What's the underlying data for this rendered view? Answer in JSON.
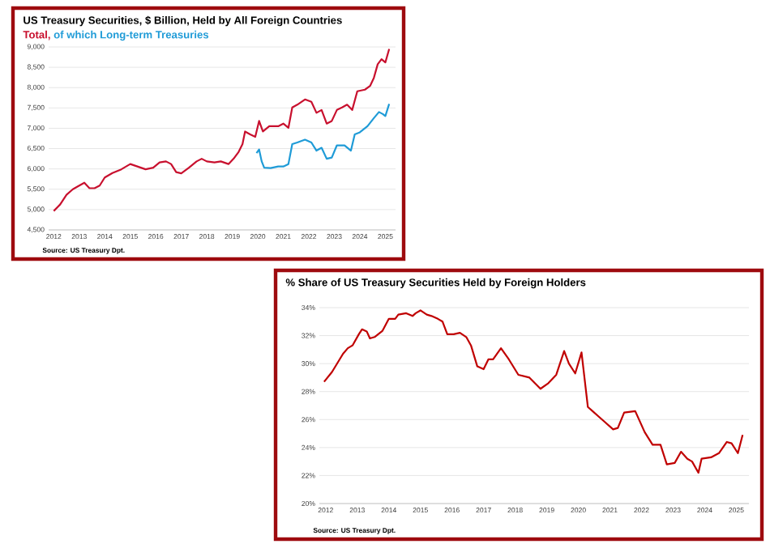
{
  "chart_data": [
    {
      "type": "line",
      "title": "US Treasury Securities, $ Billion, Held by All Foreign Countries",
      "series": [
        {
          "name": "Total,",
          "color": "#c8102e",
          "x": [
            2012.0,
            2012.25,
            2012.5,
            2012.75,
            2013.0,
            2013.2,
            2013.4,
            2013.6,
            2013.8,
            2014.0,
            2014.3,
            2014.65,
            2015.0,
            2015.3,
            2015.6,
            2015.9,
            2016.15,
            2016.4,
            2016.6,
            2016.8,
            2017.0,
            2017.3,
            2017.6,
            2017.8,
            2018.0,
            2018.3,
            2018.55,
            2018.85,
            2019.05,
            2019.25,
            2019.4,
            2019.5,
            2019.7,
            2019.9,
            2020.05,
            2020.2,
            2020.45,
            2020.8,
            2021.0,
            2021.2,
            2021.35,
            2021.55,
            2021.85,
            2022.1,
            2022.3,
            2022.5,
            2022.7,
            2022.9,
            2023.1,
            2023.3,
            2023.5,
            2023.7,
            2023.9,
            2024.2,
            2024.4,
            2024.55,
            2024.7,
            2024.85,
            2025.0,
            2025.15
          ],
          "values": [
            4965,
            5125,
            5365,
            5500,
            5590,
            5660,
            5525,
            5525,
            5590,
            5790,
            5900,
            5990,
            6120,
            6055,
            5990,
            6030,
            6160,
            6185,
            6120,
            5920,
            5890,
            6030,
            6185,
            6250,
            6185,
            6160,
            6185,
            6120,
            6250,
            6420,
            6610,
            6920,
            6850,
            6790,
            7180,
            6920,
            7050,
            7050,
            7115,
            7010,
            7510,
            7580,
            7710,
            7650,
            7380,
            7450,
            7115,
            7180,
            7450,
            7510,
            7580,
            7450,
            7910,
            7950,
            8040,
            8240,
            8575,
            8700,
            8620,
            8950
          ]
        },
        {
          "name": "of which Long-term Treasuries",
          "color": "#1f9bd7",
          "x": [
            2019.95,
            2020.05,
            2020.15,
            2020.25,
            2020.5,
            2020.8,
            2021.0,
            2021.2,
            2021.35,
            2021.55,
            2021.85,
            2022.1,
            2022.3,
            2022.5,
            2022.7,
            2022.9,
            2023.1,
            2023.4,
            2023.65,
            2023.8,
            2024.0,
            2024.3,
            2024.55,
            2024.75,
            2024.9,
            2025.0,
            2025.15
          ],
          "values": [
            6390,
            6480,
            6190,
            6030,
            6020,
            6060,
            6060,
            6120,
            6610,
            6650,
            6720,
            6650,
            6450,
            6520,
            6250,
            6280,
            6580,
            6580,
            6450,
            6850,
            6900,
            7050,
            7250,
            7400,
            7350,
            7300,
            7600
          ]
        }
      ],
      "xlim": [
        2011.8,
        2025.4
      ],
      "xticks": [
        2012,
        2013,
        2014,
        2015,
        2016,
        2017,
        2018,
        2019,
        2020,
        2021,
        2022,
        2023,
        2024,
        2025
      ],
      "ylim": [
        4500,
        9000
      ],
      "yticks": [
        {
          "value": 4500,
          "label": "4,500"
        },
        {
          "value": 5000,
          "label": "5,000"
        },
        {
          "value": 5500,
          "label": "5,500"
        },
        {
          "value": 6000,
          "label": "6,000"
        },
        {
          "value": 6500,
          "label": "6,500"
        },
        {
          "value": 7000,
          "label": "7,000"
        },
        {
          "value": 7500,
          "label": "7,500"
        },
        {
          "value": 8000,
          "label": "8,000"
        },
        {
          "value": 8500,
          "label": "8,500"
        },
        {
          "value": 9000,
          "label": "9,000"
        }
      ],
      "grid": "y",
      "legend": "top left",
      "annotations": [
        "Source: US Treasury Dpt."
      ]
    },
    {
      "type": "line",
      "title": "% Share of US Treasury Securities Held by Foreign Holders",
      "series": [
        {
          "color": "#c00000",
          "x": [
            2011.95,
            2012.2,
            2012.55,
            2012.7,
            2012.85,
            2013.05,
            2013.15,
            2013.3,
            2013.4,
            2013.55,
            2013.8,
            2014.0,
            2014.2,
            2014.3,
            2014.55,
            2014.75,
            2014.85,
            2015.0,
            2015.2,
            2015.35,
            2015.55,
            2015.7,
            2015.85,
            2016.05,
            2016.25,
            2016.45,
            2016.6,
            2016.8,
            2017.0,
            2017.15,
            2017.3,
            2017.55,
            2017.8,
            2018.1,
            2018.45,
            2018.8,
            2019.05,
            2019.3,
            2019.55,
            2019.7,
            2019.9,
            2020.1,
            2020.3,
            2020.45,
            2020.8,
            2021.1,
            2021.25,
            2021.45,
            2021.8,
            2022.1,
            2022.35,
            2022.6,
            2022.8,
            2023.05,
            2023.25,
            2023.45,
            2023.6,
            2023.8,
            2023.9,
            2024.2,
            2024.45,
            2024.7,
            2024.85,
            2025.05,
            2025.2
          ],
          "values": [
            28.7,
            29.4,
            30.7,
            31.1,
            31.3,
            32.1,
            32.45,
            32.3,
            31.8,
            31.9,
            32.35,
            33.2,
            33.2,
            33.5,
            33.6,
            33.4,
            33.6,
            33.8,
            33.5,
            33.4,
            33.2,
            33.0,
            32.1,
            32.1,
            32.2,
            31.9,
            31.3,
            29.8,
            29.6,
            30.3,
            30.3,
            31.1,
            30.3,
            29.2,
            29.0,
            28.2,
            28.6,
            29.2,
            30.9,
            30.0,
            29.3,
            30.8,
            26.9,
            26.6,
            25.9,
            25.3,
            25.4,
            26.5,
            26.6,
            25.1,
            24.2,
            24.2,
            22.8,
            22.9,
            23.7,
            23.2,
            23.0,
            22.2,
            23.2,
            23.3,
            23.6,
            24.4,
            24.3,
            23.6,
            24.9
          ]
        }
      ],
      "xlim": [
        2011.8,
        2025.4
      ],
      "xticks": [
        2012,
        2013,
        2014,
        2015,
        2016,
        2017,
        2018,
        2019,
        2020,
        2021,
        2022,
        2023,
        2024,
        2025
      ],
      "ylim": [
        20,
        34
      ],
      "yticks": [
        {
          "value": 20,
          "label": "20%"
        },
        {
          "value": 22,
          "label": "22%"
        },
        {
          "value": 24,
          "label": "24%"
        },
        {
          "value": 26,
          "label": "26%"
        },
        {
          "value": 28,
          "label": "28%"
        },
        {
          "value": 30,
          "label": "30%"
        },
        {
          "value": 32,
          "label": "32%"
        },
        {
          "value": 34,
          "label": "34%"
        }
      ],
      "grid": "y",
      "annotations": [
        "Source: US Treasury Dpt."
      ]
    }
  ]
}
